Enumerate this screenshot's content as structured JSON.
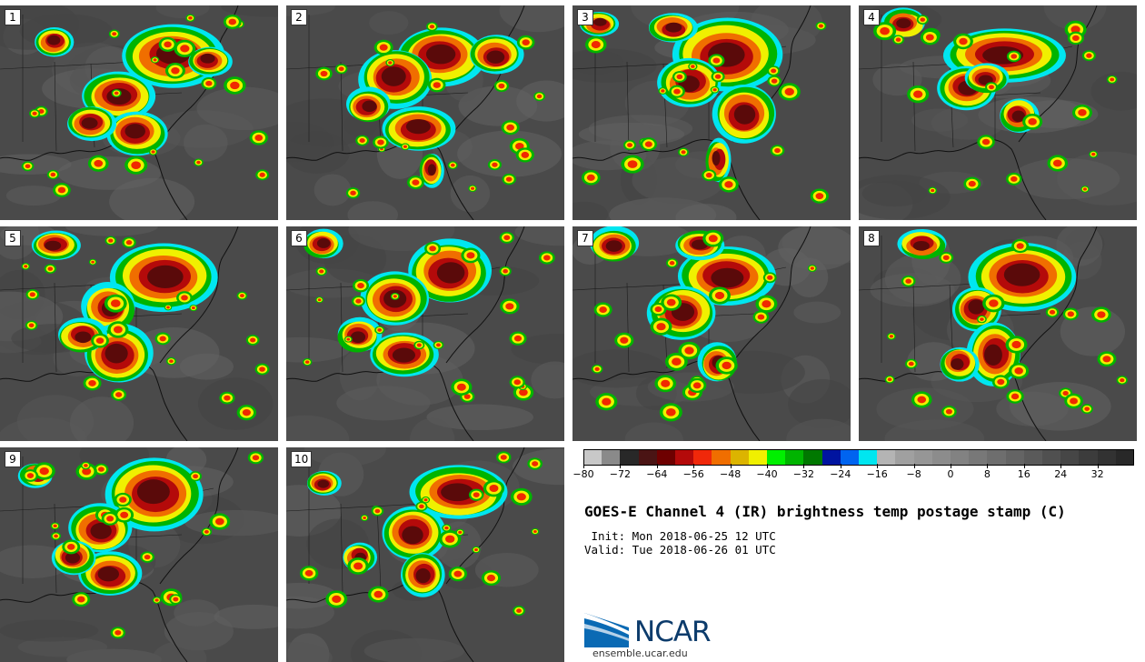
{
  "panels": [
    {
      "label": "1"
    },
    {
      "label": "2"
    },
    {
      "label": "3"
    },
    {
      "label": "4"
    },
    {
      "label": "5"
    },
    {
      "label": "6"
    },
    {
      "label": "7"
    },
    {
      "label": "8"
    },
    {
      "label": "9"
    },
    {
      "label": "10"
    }
  ],
  "colorbar": {
    "colors": [
      "#c8c8c8",
      "#8a8a8a",
      "#282828",
      "#4a1414",
      "#6e0000",
      "#b40a0a",
      "#f0280a",
      "#f06e00",
      "#dcb400",
      "#f0f000",
      "#00f000",
      "#00b400",
      "#007800",
      "#0014a0",
      "#0064f0",
      "#00e6f0",
      "#b4b4b4",
      "#a0a0a0",
      "#969696",
      "#8c8c8c",
      "#828282",
      "#787878",
      "#6e6e6e",
      "#646464",
      "#5a5a5a",
      "#505050",
      "#464646",
      "#3c3c3c",
      "#323232",
      "#282828"
    ],
    "tick_labels": [
      "−80",
      "−72",
      "−64",
      "−56",
      "−48",
      "−40",
      "−32",
      "−24",
      "−16",
      "−8",
      "0",
      "8",
      "16",
      "24",
      "32"
    ]
  },
  "title": "GOES-E Channel 4 (IR) brightness temp postage stamp (C)",
  "init": " Init: Mon 2018-06-25 12 UTC",
  "valid": "Valid: Tue 2018-06-26 01 UTC",
  "logo": {
    "text": "NCAR",
    "url": "ensemble.ucar.edu"
  }
}
